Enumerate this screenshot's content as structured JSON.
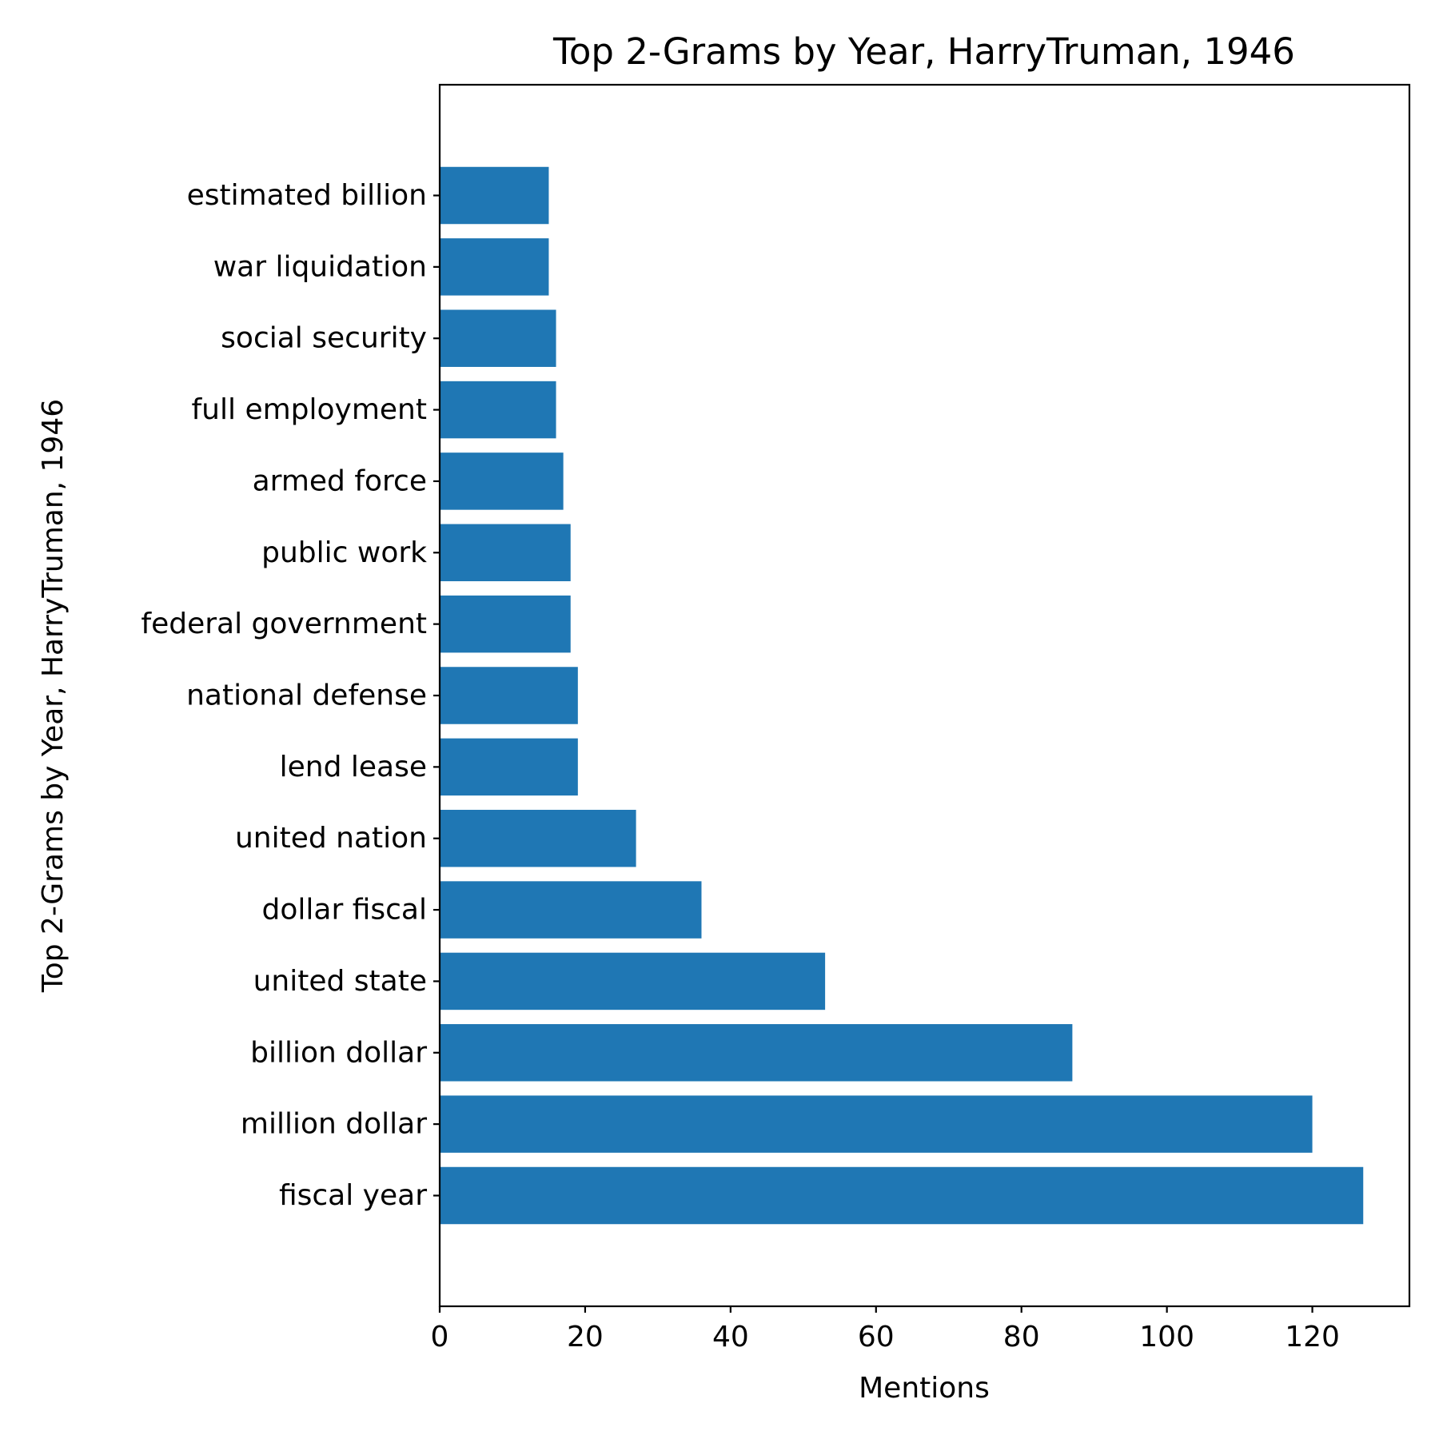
{
  "chart_data": {
    "type": "bar",
    "orientation": "horizontal",
    "title": "Top 2-Grams by Year, HarryTruman, 1946",
    "xlabel": "Mentions",
    "ylabel": "Top 2-Grams by Year, HarryTruman, 1946",
    "categories": [
      "fiscal year",
      "million dollar",
      "billion dollar",
      "united state",
      "dollar fiscal",
      "united nation",
      "lend lease",
      "national defense",
      "federal government",
      "public work",
      "armed force",
      "full employment",
      "social security",
      "war liquidation",
      "estimated billion"
    ],
    "values": [
      127,
      120,
      87,
      53,
      36,
      27,
      19,
      19,
      18,
      18,
      17,
      16,
      16,
      15,
      15
    ],
    "xlim": [
      0,
      133.35
    ],
    "xticks": [
      0,
      20,
      40,
      60,
      80,
      100,
      120
    ],
    "grid": false,
    "legend": "none",
    "colors": {
      "bar": "#1f77b4"
    }
  }
}
